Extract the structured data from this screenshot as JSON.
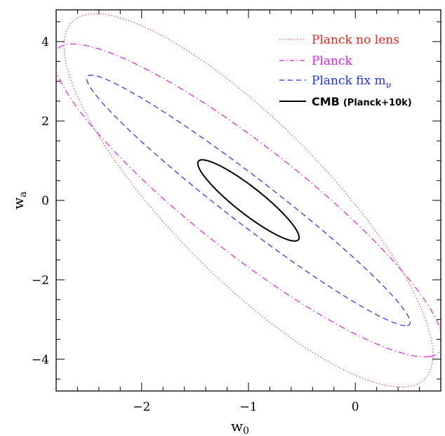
{
  "chart_data": {
    "type": "line",
    "subtype": "confidence-ellipses",
    "title": "",
    "xlabel": "w",
    "xlabel_sub": "0",
    "ylabel": "w",
    "ylabel_sub": "a",
    "xlim": [
      -2.8,
      0.8
    ],
    "ylim": [
      -4.8,
      4.8
    ],
    "xticks": [
      -2,
      -1,
      0
    ],
    "xtick_labels": [
      "−2",
      "−1",
      "0"
    ],
    "yticks": [
      -4,
      -2,
      0,
      2,
      4
    ],
    "ytick_labels": [
      "−4",
      "−2",
      "0",
      "2",
      "4"
    ],
    "grid": false,
    "legend_position": "top-right",
    "series": [
      {
        "name": "Planck no lens",
        "style": "dotted",
        "color": "#e8241f",
        "center": [
          -1.0,
          0.0
        ],
        "extreme_points": [
          [
            -2.43,
            4.7
          ],
          [
            0.43,
            -4.7
          ],
          [
            -2.73,
            3.9
          ],
          [
            0.73,
            -3.9
          ]
        ]
      },
      {
        "name": "Planck",
        "style": "dash-dot",
        "color": "#e020e0",
        "center": [
          -1.0,
          0.0
        ],
        "extreme_points": [
          [
            -2.75,
            3.92
          ],
          [
            0.75,
            -3.92
          ],
          [
            -1.5,
            1.4
          ],
          [
            -0.5,
            -1.4
          ]
        ]
      },
      {
        "name": "Planck fix m_ν",
        "name_main": "Planck fix m",
        "name_sub": "ν",
        "style": "dashed",
        "color": "#2030e8",
        "center": [
          -1.0,
          0.0
        ],
        "extreme_points": [
          [
            -2.5,
            3.15
          ],
          [
            0.5,
            -3.15
          ],
          [
            -1.45,
            1.0
          ],
          [
            -0.55,
            -1.0
          ]
        ]
      },
      {
        "name": "CMB (Planck+10k)",
        "name_main": "CMB",
        "name_paren": "(Planck+10k)",
        "style": "solid",
        "color": "#000000",
        "center": [
          -1.0,
          0.0
        ],
        "extreme_points": [
          [
            -1.45,
            0.95
          ],
          [
            -0.55,
            -0.95
          ]
        ]
      }
    ]
  }
}
